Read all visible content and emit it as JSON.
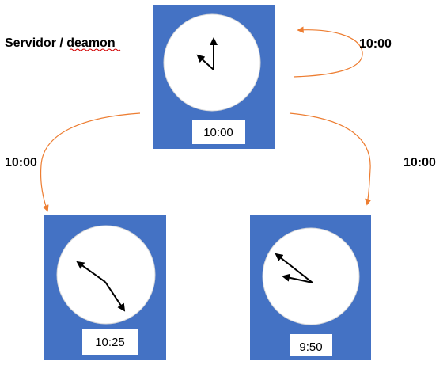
{
  "title": "Servidor / deamon",
  "colors": {
    "box": "#4472C4",
    "arrow": "#ED7D31",
    "face": "#FFFFFF",
    "hand": "#000000"
  },
  "server": {
    "time": "10:00",
    "self_edge_label": "10:00"
  },
  "clients": [
    {
      "name": "left-client",
      "time": "10:25",
      "edge_label": "10:00"
    },
    {
      "name": "right-client",
      "time": "9:50",
      "edge_label": "10:00"
    }
  ]
}
